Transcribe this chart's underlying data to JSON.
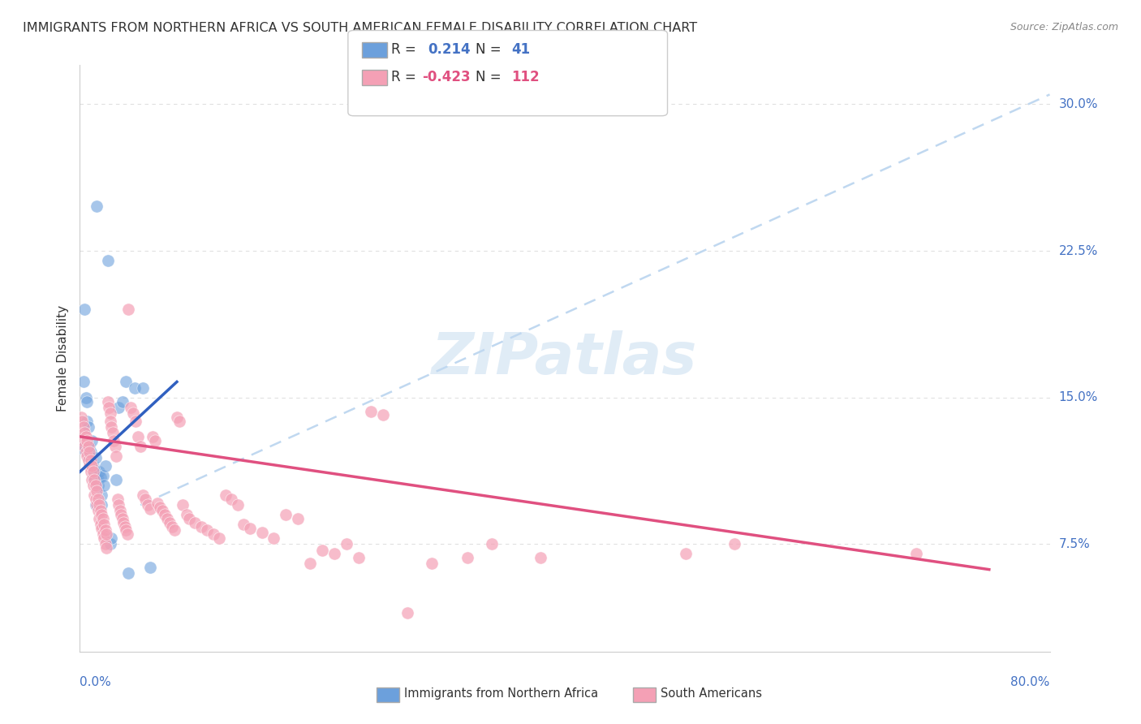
{
  "title": "IMMIGRANTS FROM NORTHERN AFRICA VS SOUTH AMERICAN FEMALE DISABILITY CORRELATION CHART",
  "source": "Source: ZipAtlas.com",
  "ylabel": "Female Disability",
  "xlim": [
    0.0,
    0.8
  ],
  "ylim": [
    0.02,
    0.32
  ],
  "legend": {
    "blue_R": "0.214",
    "blue_N": "41",
    "pink_R": "-0.423",
    "pink_N": "112"
  },
  "blue_color": "#6ca0dc",
  "pink_color": "#f4a0b5",
  "blue_line_color": "#3060c0",
  "pink_line_color": "#e05080",
  "dashed_line_color": "#c0d8f0",
  "watermark": "ZIPatlas",
  "grid_color": "#e0e0e0",
  "blue_points": [
    [
      0.001,
      0.124
    ],
    [
      0.003,
      0.158
    ],
    [
      0.004,
      0.195
    ],
    [
      0.005,
      0.15
    ],
    [
      0.006,
      0.148
    ],
    [
      0.006,
      0.138
    ],
    [
      0.007,
      0.135
    ],
    [
      0.007,
      0.12
    ],
    [
      0.008,
      0.117
    ],
    [
      0.008,
      0.125
    ],
    [
      0.009,
      0.116
    ],
    [
      0.009,
      0.122
    ],
    [
      0.01,
      0.128
    ],
    [
      0.01,
      0.118
    ],
    [
      0.011,
      0.115
    ],
    [
      0.011,
      0.11
    ],
    [
      0.012,
      0.113
    ],
    [
      0.012,
      0.108
    ],
    [
      0.013,
      0.119
    ],
    [
      0.013,
      0.095
    ],
    [
      0.014,
      0.248
    ],
    [
      0.015,
      0.105
    ],
    [
      0.015,
      0.108
    ],
    [
      0.016,
      0.112
    ],
    [
      0.017,
      0.109
    ],
    [
      0.018,
      0.1
    ],
    [
      0.018,
      0.095
    ],
    [
      0.019,
      0.11
    ],
    [
      0.02,
      0.105
    ],
    [
      0.021,
      0.115
    ],
    [
      0.023,
      0.22
    ],
    [
      0.025,
      0.075
    ],
    [
      0.026,
      0.078
    ],
    [
      0.03,
      0.108
    ],
    [
      0.032,
      0.145
    ],
    [
      0.035,
      0.148
    ],
    [
      0.038,
      0.158
    ],
    [
      0.04,
      0.06
    ],
    [
      0.045,
      0.155
    ],
    [
      0.052,
      0.155
    ],
    [
      0.058,
      0.063
    ]
  ],
  "pink_points": [
    [
      0.001,
      0.14
    ],
    [
      0.002,
      0.138
    ],
    [
      0.003,
      0.135
    ],
    [
      0.003,
      0.128
    ],
    [
      0.004,
      0.132
    ],
    [
      0.004,
      0.125
    ],
    [
      0.005,
      0.13
    ],
    [
      0.005,
      0.122
    ],
    [
      0.006,
      0.128
    ],
    [
      0.006,
      0.12
    ],
    [
      0.007,
      0.125
    ],
    [
      0.007,
      0.118
    ],
    [
      0.008,
      0.122
    ],
    [
      0.008,
      0.115
    ],
    [
      0.009,
      0.118
    ],
    [
      0.009,
      0.112
    ],
    [
      0.01,
      0.115
    ],
    [
      0.01,
      0.108
    ],
    [
      0.011,
      0.112
    ],
    [
      0.011,
      0.105
    ],
    [
      0.012,
      0.108
    ],
    [
      0.012,
      0.1
    ],
    [
      0.013,
      0.105
    ],
    [
      0.013,
      0.098
    ],
    [
      0.014,
      0.102
    ],
    [
      0.014,
      0.095
    ],
    [
      0.015,
      0.098
    ],
    [
      0.015,
      0.092
    ],
    [
      0.016,
      0.095
    ],
    [
      0.016,
      0.088
    ],
    [
      0.017,
      0.092
    ],
    [
      0.017,
      0.085
    ],
    [
      0.018,
      0.09
    ],
    [
      0.018,
      0.083
    ],
    [
      0.019,
      0.088
    ],
    [
      0.019,
      0.08
    ],
    [
      0.02,
      0.085
    ],
    [
      0.02,
      0.078
    ],
    [
      0.021,
      0.082
    ],
    [
      0.021,
      0.075
    ],
    [
      0.022,
      0.08
    ],
    [
      0.022,
      0.073
    ],
    [
      0.023,
      0.148
    ],
    [
      0.024,
      0.145
    ],
    [
      0.025,
      0.142
    ],
    [
      0.025,
      0.138
    ],
    [
      0.026,
      0.135
    ],
    [
      0.027,
      0.132
    ],
    [
      0.028,
      0.128
    ],
    [
      0.029,
      0.125
    ],
    [
      0.03,
      0.12
    ],
    [
      0.031,
      0.098
    ],
    [
      0.032,
      0.095
    ],
    [
      0.033,
      0.092
    ],
    [
      0.034,
      0.09
    ],
    [
      0.035,
      0.088
    ],
    [
      0.036,
      0.086
    ],
    [
      0.037,
      0.084
    ],
    [
      0.038,
      0.082
    ],
    [
      0.039,
      0.08
    ],
    [
      0.04,
      0.195
    ],
    [
      0.042,
      0.145
    ],
    [
      0.044,
      0.142
    ],
    [
      0.046,
      0.138
    ],
    [
      0.048,
      0.13
    ],
    [
      0.05,
      0.125
    ],
    [
      0.052,
      0.1
    ],
    [
      0.054,
      0.098
    ],
    [
      0.056,
      0.095
    ],
    [
      0.058,
      0.093
    ],
    [
      0.06,
      0.13
    ],
    [
      0.062,
      0.128
    ],
    [
      0.064,
      0.096
    ],
    [
      0.066,
      0.094
    ],
    [
      0.068,
      0.092
    ],
    [
      0.07,
      0.09
    ],
    [
      0.072,
      0.088
    ],
    [
      0.074,
      0.086
    ],
    [
      0.076,
      0.084
    ],
    [
      0.078,
      0.082
    ],
    [
      0.08,
      0.14
    ],
    [
      0.082,
      0.138
    ],
    [
      0.085,
      0.095
    ],
    [
      0.088,
      0.09
    ],
    [
      0.09,
      0.088
    ],
    [
      0.095,
      0.086
    ],
    [
      0.1,
      0.084
    ],
    [
      0.105,
      0.082
    ],
    [
      0.11,
      0.08
    ],
    [
      0.115,
      0.078
    ],
    [
      0.12,
      0.1
    ],
    [
      0.125,
      0.098
    ],
    [
      0.13,
      0.095
    ],
    [
      0.135,
      0.085
    ],
    [
      0.14,
      0.083
    ],
    [
      0.15,
      0.081
    ],
    [
      0.16,
      0.078
    ],
    [
      0.17,
      0.09
    ],
    [
      0.18,
      0.088
    ],
    [
      0.19,
      0.065
    ],
    [
      0.2,
      0.072
    ],
    [
      0.21,
      0.07
    ],
    [
      0.22,
      0.075
    ],
    [
      0.23,
      0.068
    ],
    [
      0.24,
      0.143
    ],
    [
      0.25,
      0.141
    ],
    [
      0.27,
      0.04
    ],
    [
      0.29,
      0.065
    ],
    [
      0.32,
      0.068
    ],
    [
      0.34,
      0.075
    ],
    [
      0.38,
      0.068
    ],
    [
      0.5,
      0.07
    ],
    [
      0.54,
      0.075
    ],
    [
      0.69,
      0.07
    ]
  ],
  "blue_line_x": [
    0.0,
    0.08
  ],
  "blue_line_y": [
    0.112,
    0.158
  ],
  "pink_line_x": [
    0.0,
    0.75
  ],
  "pink_line_y": [
    0.13,
    0.062
  ],
  "dashed_line_x": [
    0.05,
    0.8
  ],
  "dashed_line_y": [
    0.095,
    0.305
  ],
  "ytick_positions": [
    0.075,
    0.15,
    0.225,
    0.3
  ],
  "ytick_labels": [
    "7.5%",
    "15.0%",
    "22.5%",
    "30.0%"
  ]
}
